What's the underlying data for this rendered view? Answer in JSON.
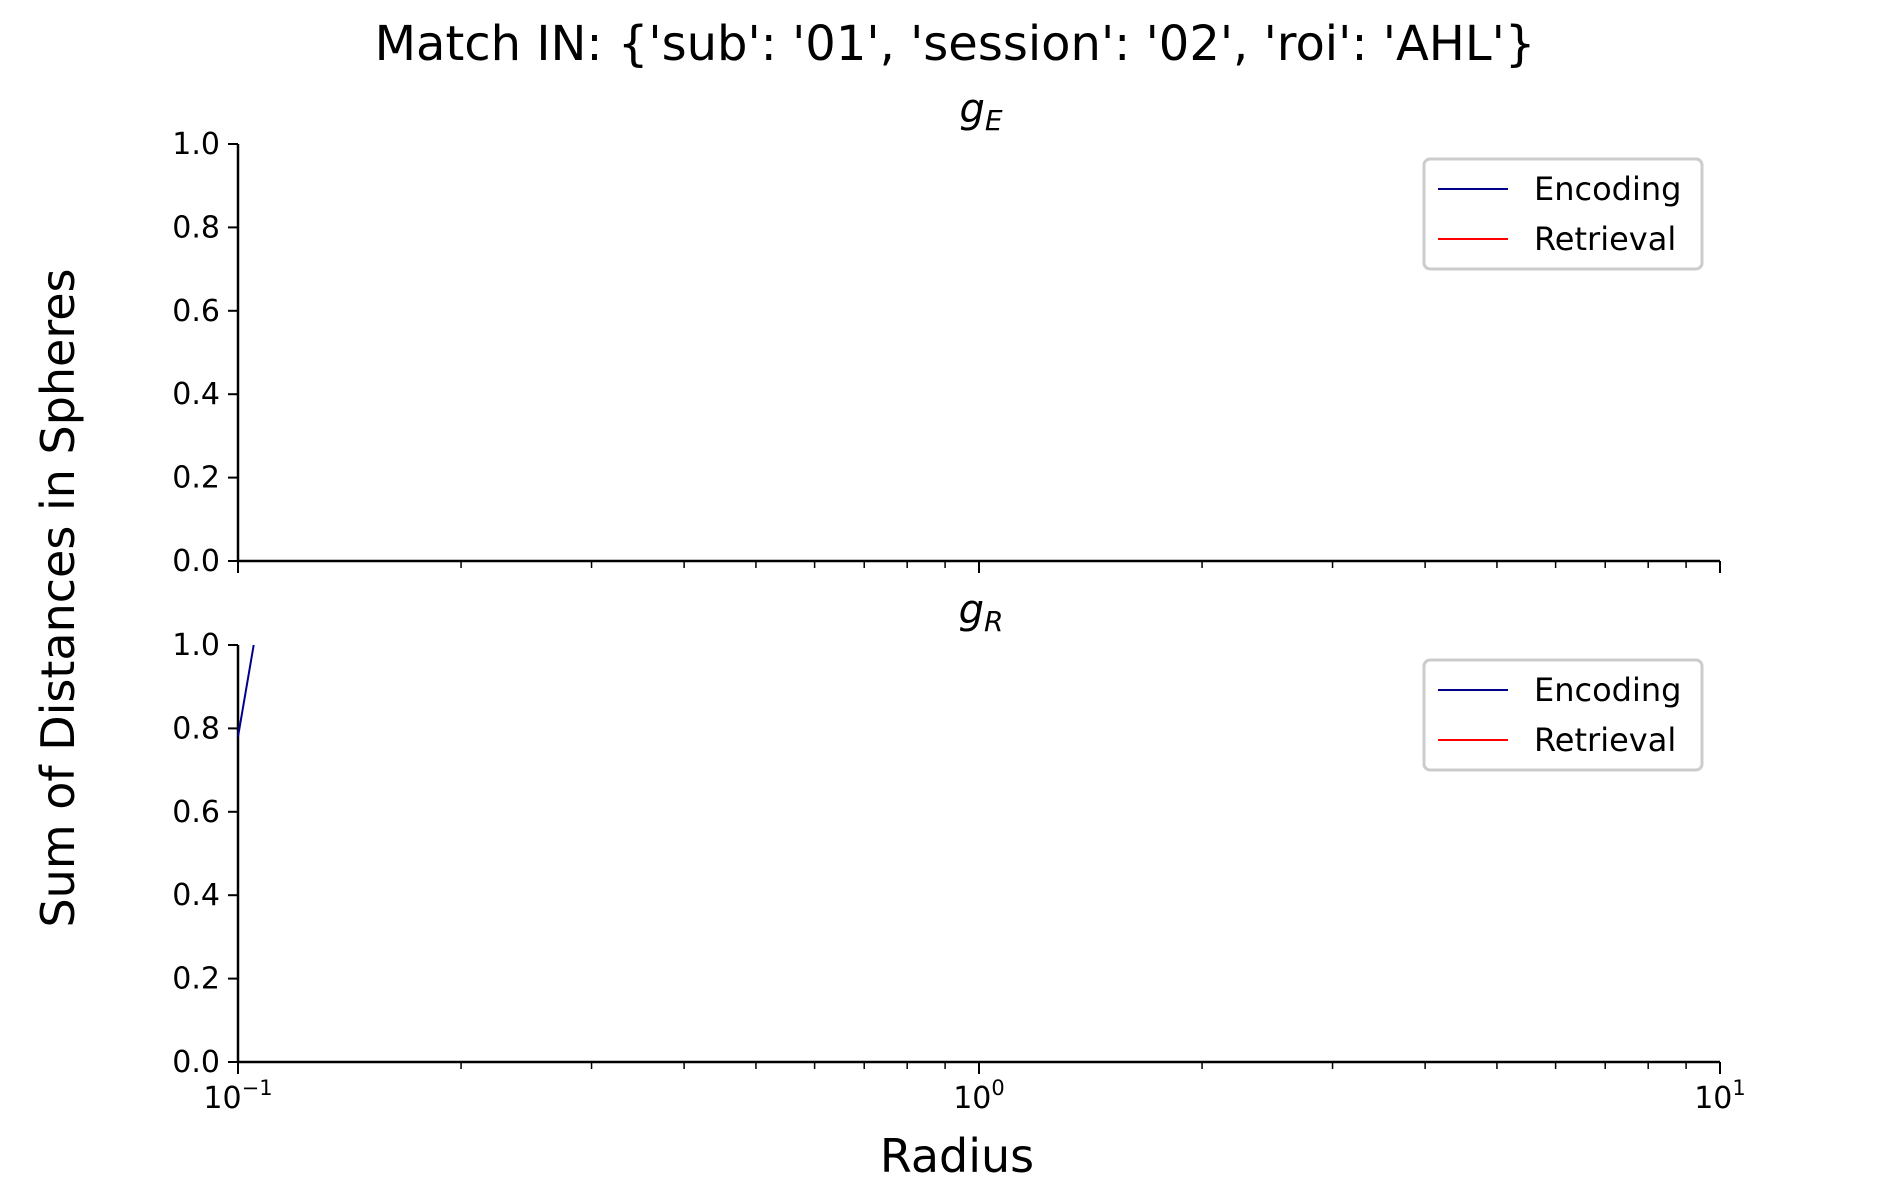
{
  "figure": {
    "suptitle": "Match IN: {'sub': '01', 'session': '02', 'roi': 'AHL'}",
    "xlabel": "Radius",
    "ylabel": "Sum of Distances in Spheres"
  },
  "colors": {
    "encoding": "#00008b",
    "retrieval": "#ff0000",
    "axis": "#000000",
    "legend_border": "#cccccc"
  },
  "chart_data": [
    {
      "type": "line",
      "title_base": "g",
      "title_sub": "E",
      "xscale": "log",
      "xlim": [
        0.1,
        10
      ],
      "ylim": [
        0.0,
        1.0
      ],
      "xticks": [
        0.1,
        1,
        10
      ],
      "xtick_labels": [
        {
          "base": "10",
          "exp": "−1"
        },
        {
          "base": "10",
          "exp": "0"
        },
        {
          "base": "10",
          "exp": "1"
        }
      ],
      "show_xtick_labels": false,
      "yticks": [
        "0.0",
        "0.2",
        "0.4",
        "0.6",
        "0.8",
        "1.0"
      ],
      "grid": false,
      "legend_loc": "upper right",
      "series": [
        {
          "name": "Encoding",
          "color_key": "encoding",
          "x": [],
          "y": []
        },
        {
          "name": "Retrieval",
          "color_key": "retrieval",
          "x": [],
          "y": []
        }
      ]
    },
    {
      "type": "line",
      "title_base": "g",
      "title_sub": "R",
      "xscale": "log",
      "xlim": [
        0.1,
        10
      ],
      "ylim": [
        0.0,
        1.0
      ],
      "xticks": [
        0.1,
        1,
        10
      ],
      "xtick_labels": [
        {
          "base": "10",
          "exp": "−1"
        },
        {
          "base": "10",
          "exp": "0"
        },
        {
          "base": "10",
          "exp": "1"
        }
      ],
      "show_xtick_labels": true,
      "yticks": [
        "0.0",
        "0.2",
        "0.4",
        "0.6",
        "0.8",
        "1.0"
      ],
      "grid": false,
      "legend_loc": "upper right",
      "series": [
        {
          "name": "Encoding",
          "color_key": "encoding",
          "x": [
            0.1,
            0.105
          ],
          "y": [
            0.78,
            1.0
          ]
        },
        {
          "name": "Retrieval",
          "color_key": "retrieval",
          "x": [],
          "y": []
        }
      ]
    }
  ]
}
